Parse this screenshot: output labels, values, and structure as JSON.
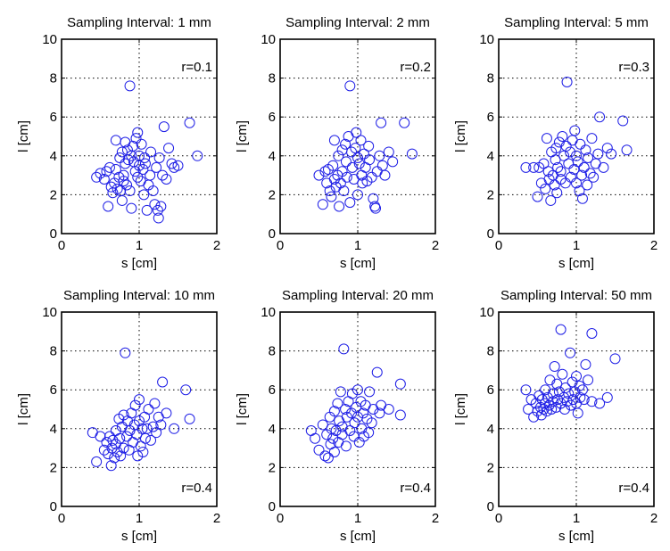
{
  "chart_data": [
    {
      "type": "scatter",
      "title": "Sampling Interval: 1 mm",
      "xlabel": "s [cm]",
      "ylabel": "l [cm]",
      "xlim": [
        0,
        2
      ],
      "ylim": [
        0,
        10
      ],
      "xticks": [
        "0",
        "1",
        "2"
      ],
      "yticks": [
        "0",
        "2",
        "4",
        "6",
        "8",
        "10"
      ],
      "grid": true,
      "marker_color": "#1f1fe6",
      "annotation": "r=0.1",
      "annotation_position": "top-right",
      "points": [
        [
          0.45,
          2.9
        ],
        [
          0.5,
          3.1
        ],
        [
          0.55,
          2.8
        ],
        [
          0.58,
          3.2
        ],
        [
          0.6,
          1.4
        ],
        [
          0.62,
          3.4
        ],
        [
          0.64,
          2.4
        ],
        [
          0.66,
          2.1
        ],
        [
          0.68,
          2.6
        ],
        [
          0.7,
          3.3
        ],
        [
          0.7,
          4.8
        ],
        [
          0.72,
          2.3
        ],
        [
          0.74,
          2.9
        ],
        [
          0.75,
          3.9
        ],
        [
          0.76,
          2.2
        ],
        [
          0.78,
          1.7
        ],
        [
          0.78,
          4.2
        ],
        [
          0.8,
          3.0
        ],
        [
          0.8,
          2.7
        ],
        [
          0.82,
          4.7
        ],
        [
          0.82,
          3.6
        ],
        [
          0.84,
          2.5
        ],
        [
          0.85,
          4.3
        ],
        [
          0.86,
          3.8
        ],
        [
          0.88,
          7.6
        ],
        [
          0.88,
          2.2
        ],
        [
          0.9,
          4.0
        ],
        [
          0.9,
          1.3
        ],
        [
          0.92,
          4.5
        ],
        [
          0.93,
          3.7
        ],
        [
          0.95,
          3.2
        ],
        [
          0.96,
          4.9
        ],
        [
          0.98,
          5.2
        ],
        [
          0.98,
          2.9
        ],
        [
          1.0,
          4.0
        ],
        [
          1.0,
          3.5
        ],
        [
          1.02,
          2.7
        ],
        [
          1.03,
          4.6
        ],
        [
          1.05,
          3.3
        ],
        [
          1.06,
          2.0
        ],
        [
          1.07,
          3.9
        ],
        [
          1.08,
          3.6
        ],
        [
          1.1,
          1.2
        ],
        [
          1.12,
          2.5
        ],
        [
          1.14,
          3.0
        ],
        [
          1.15,
          4.2
        ],
        [
          1.18,
          2.2
        ],
        [
          1.2,
          1.5
        ],
        [
          1.22,
          3.4
        ],
        [
          1.24,
          1.2
        ],
        [
          1.25,
          0.8
        ],
        [
          1.26,
          3.9
        ],
        [
          1.28,
          1.4
        ],
        [
          1.3,
          3.0
        ],
        [
          1.32,
          5.5
        ],
        [
          1.35,
          2.8
        ],
        [
          1.38,
          4.4
        ],
        [
          1.42,
          3.6
        ],
        [
          1.45,
          3.4
        ],
        [
          1.5,
          3.5
        ],
        [
          1.65,
          5.7
        ],
        [
          1.75,
          4.0
        ]
      ]
    },
    {
      "type": "scatter",
      "title": "Sampling Interval: 2 mm",
      "xlabel": "s [cm]",
      "ylabel": "l [cm]",
      "xlim": [
        0,
        2
      ],
      "ylim": [
        0,
        10
      ],
      "xticks": [
        "0",
        "1",
        "2"
      ],
      "yticks": [
        "0",
        "2",
        "4",
        "6",
        "8",
        "10"
      ],
      "grid": true,
      "marker_color": "#1f1fe6",
      "annotation": "r=0.2",
      "annotation_position": "top-right",
      "points": [
        [
          0.5,
          3.0
        ],
        [
          0.55,
          1.5
        ],
        [
          0.58,
          3.2
        ],
        [
          0.6,
          2.6
        ],
        [
          0.62,
          3.3
        ],
        [
          0.64,
          2.2
        ],
        [
          0.66,
          1.9
        ],
        [
          0.68,
          3.5
        ],
        [
          0.7,
          2.8
        ],
        [
          0.7,
          4.8
        ],
        [
          0.72,
          2.4
        ],
        [
          0.74,
          3.0
        ],
        [
          0.75,
          4.0
        ],
        [
          0.76,
          1.4
        ],
        [
          0.78,
          2.6
        ],
        [
          0.8,
          4.3
        ],
        [
          0.8,
          3.2
        ],
        [
          0.82,
          2.2
        ],
        [
          0.84,
          4.6
        ],
        [
          0.85,
          3.7
        ],
        [
          0.86,
          2.9
        ],
        [
          0.88,
          5.0
        ],
        [
          0.9,
          7.6
        ],
        [
          0.9,
          1.6
        ],
        [
          0.92,
          4.2
        ],
        [
          0.93,
          3.4
        ],
        [
          0.95,
          2.8
        ],
        [
          0.97,
          4.4
        ],
        [
          0.98,
          5.2
        ],
        [
          1.0,
          3.9
        ],
        [
          1.0,
          2.0
        ],
        [
          1.02,
          3.6
        ],
        [
          1.04,
          4.8
        ],
        [
          1.05,
          3.0
        ],
        [
          1.06,
          2.6
        ],
        [
          1.08,
          4.1
        ],
        [
          1.1,
          3.4
        ],
        [
          1.12,
          2.7
        ],
        [
          1.14,
          4.5
        ],
        [
          1.15,
          3.8
        ],
        [
          1.18,
          2.9
        ],
        [
          1.2,
          1.8
        ],
        [
          1.22,
          1.4
        ],
        [
          1.23,
          1.3
        ],
        [
          1.25,
          3.2
        ],
        [
          1.28,
          4.0
        ],
        [
          1.3,
          5.7
        ],
        [
          1.32,
          3.5
        ],
        [
          1.35,
          3.0
        ],
        [
          1.4,
          4.2
        ],
        [
          1.45,
          3.7
        ],
        [
          1.6,
          5.7
        ],
        [
          1.7,
          4.1
        ]
      ]
    },
    {
      "type": "scatter",
      "title": "Sampling Interval: 5 mm",
      "xlabel": "s [cm]",
      "ylabel": "l [cm]",
      "xlim": [
        0,
        2
      ],
      "ylim": [
        0,
        10
      ],
      "xticks": [
        "0",
        "1",
        "2"
      ],
      "yticks": [
        "0",
        "2",
        "4",
        "6",
        "8",
        "10"
      ],
      "grid": true,
      "marker_color": "#1f1fe6",
      "annotation": "r=0.3",
      "annotation_position": "top-right",
      "points": [
        [
          0.35,
          3.4
        ],
        [
          0.45,
          3.4
        ],
        [
          0.5,
          1.9
        ],
        [
          0.52,
          3.4
        ],
        [
          0.55,
          2.6
        ],
        [
          0.58,
          3.6
        ],
        [
          0.6,
          2.3
        ],
        [
          0.62,
          4.9
        ],
        [
          0.64,
          3.2
        ],
        [
          0.65,
          2.8
        ],
        [
          0.67,
          1.7
        ],
        [
          0.68,
          4.2
        ],
        [
          0.7,
          3.0
        ],
        [
          0.72,
          2.5
        ],
        [
          0.73,
          3.8
        ],
        [
          0.74,
          4.4
        ],
        [
          0.75,
          2.1
        ],
        [
          0.76,
          3.4
        ],
        [
          0.78,
          4.7
        ],
        [
          0.8,
          2.8
        ],
        [
          0.8,
          3.2
        ],
        [
          0.82,
          5.0
        ],
        [
          0.84,
          4.0
        ],
        [
          0.86,
          2.6
        ],
        [
          0.87,
          4.5
        ],
        [
          0.88,
          7.8
        ],
        [
          0.9,
          3.6
        ],
        [
          0.92,
          4.2
        ],
        [
          0.93,
          2.9
        ],
        [
          0.95,
          4.8
        ],
        [
          0.97,
          3.3
        ],
        [
          0.98,
          5.3
        ],
        [
          1.0,
          4.0
        ],
        [
          1.0,
          2.6
        ],
        [
          1.02,
          3.7
        ],
        [
          1.04,
          2.2
        ],
        [
          1.05,
          4.6
        ],
        [
          1.07,
          3.0
        ],
        [
          1.08,
          1.8
        ],
        [
          1.1,
          3.4
        ],
        [
          1.12,
          4.3
        ],
        [
          1.14,
          2.5
        ],
        [
          1.15,
          3.9
        ],
        [
          1.18,
          3.1
        ],
        [
          1.2,
          4.9
        ],
        [
          1.22,
          2.9
        ],
        [
          1.25,
          3.6
        ],
        [
          1.28,
          4.1
        ],
        [
          1.3,
          6.0
        ],
        [
          1.35,
          3.4
        ],
        [
          1.4,
          4.4
        ],
        [
          1.45,
          4.1
        ],
        [
          1.6,
          5.8
        ],
        [
          1.65,
          4.3
        ]
      ]
    },
    {
      "type": "scatter",
      "title": "Sampling Interval: 10 mm",
      "xlabel": "s [cm]",
      "ylabel": "l [cm]",
      "xlim": [
        0,
        2
      ],
      "ylim": [
        0,
        10
      ],
      "xticks": [
        "0",
        "1",
        "2"
      ],
      "yticks": [
        "0",
        "2",
        "4",
        "6",
        "8",
        "10"
      ],
      "grid": true,
      "marker_color": "#1f1fe6",
      "annotation": "r=0.4",
      "annotation_position": "bottom-right",
      "points": [
        [
          0.4,
          3.8
        ],
        [
          0.45,
          2.3
        ],
        [
          0.5,
          3.6
        ],
        [
          0.55,
          2.9
        ],
        [
          0.58,
          3.3
        ],
        [
          0.6,
          2.7
        ],
        [
          0.62,
          3.6
        ],
        [
          0.64,
          2.1
        ],
        [
          0.65,
          3.0
        ],
        [
          0.66,
          3.4
        ],
        [
          0.68,
          2.5
        ],
        [
          0.7,
          3.9
        ],
        [
          0.7,
          3.2
        ],
        [
          0.72,
          2.8
        ],
        [
          0.74,
          4.5
        ],
        [
          0.75,
          3.5
        ],
        [
          0.76,
          2.6
        ],
        [
          0.78,
          4.1
        ],
        [
          0.8,
          3.0
        ],
        [
          0.8,
          4.7
        ],
        [
          0.82,
          7.9
        ],
        [
          0.84,
          3.6
        ],
        [
          0.85,
          4.4
        ],
        [
          0.87,
          2.9
        ],
        [
          0.88,
          3.9
        ],
        [
          0.9,
          4.8
        ],
        [
          0.92,
          3.3
        ],
        [
          0.94,
          4.2
        ],
        [
          0.95,
          5.2
        ],
        [
          0.97,
          3.7
        ],
        [
          0.98,
          2.6
        ],
        [
          1.0,
          5.5
        ],
        [
          1.0,
          4.4
        ],
        [
          1.02,
          3.1
        ],
        [
          1.04,
          4.0
        ],
        [
          1.05,
          2.8
        ],
        [
          1.07,
          4.6
        ],
        [
          1.08,
          3.5
        ],
        [
          1.1,
          4.0
        ],
        [
          1.12,
          5.0
        ],
        [
          1.15,
          3.4
        ],
        [
          1.18,
          4.1
        ],
        [
          1.2,
          5.3
        ],
        [
          1.22,
          3.8
        ],
        [
          1.25,
          4.6
        ],
        [
          1.28,
          4.2
        ],
        [
          1.3,
          6.4
        ],
        [
          1.35,
          4.8
        ],
        [
          1.45,
          4.0
        ],
        [
          1.6,
          6.0
        ],
        [
          1.65,
          4.5
        ]
      ]
    },
    {
      "type": "scatter",
      "title": "Sampling Interval: 20 mm",
      "xlabel": "s [cm]",
      "ylabel": "l [cm]",
      "xlim": [
        0,
        2
      ],
      "ylim": [
        0,
        10
      ],
      "xticks": [
        "0",
        "1",
        "2"
      ],
      "yticks": [
        "0",
        "2",
        "4",
        "6",
        "8",
        "10"
      ],
      "grid": true,
      "marker_color": "#1f1fe6",
      "annotation": "r=0.4",
      "annotation_position": "bottom-right",
      "points": [
        [
          0.4,
          3.9
        ],
        [
          0.45,
          3.5
        ],
        [
          0.5,
          2.9
        ],
        [
          0.55,
          4.2
        ],
        [
          0.58,
          2.6
        ],
        [
          0.6,
          3.7
        ],
        [
          0.62,
          2.5
        ],
        [
          0.64,
          4.6
        ],
        [
          0.65,
          3.2
        ],
        [
          0.66,
          4.0
        ],
        [
          0.68,
          3.5
        ],
        [
          0.7,
          2.8
        ],
        [
          0.7,
          4.9
        ],
        [
          0.72,
          3.9
        ],
        [
          0.74,
          5.3
        ],
        [
          0.75,
          3.3
        ],
        [
          0.76,
          4.4
        ],
        [
          0.78,
          5.9
        ],
        [
          0.8,
          3.7
        ],
        [
          0.8,
          4.1
        ],
        [
          0.82,
          8.1
        ],
        [
          0.84,
          5.0
        ],
        [
          0.85,
          3.1
        ],
        [
          0.86,
          4.6
        ],
        [
          0.88,
          5.4
        ],
        [
          0.9,
          3.9
        ],
        [
          0.92,
          4.8
        ],
        [
          0.93,
          5.8
        ],
        [
          0.95,
          3.6
        ],
        [
          0.96,
          4.3
        ],
        [
          0.98,
          5.1
        ],
        [
          1.0,
          6.0
        ],
        [
          1.0,
          4.6
        ],
        [
          1.02,
          3.3
        ],
        [
          1.04,
          5.4
        ],
        [
          1.05,
          4.0
        ],
        [
          1.07,
          4.8
        ],
        [
          1.08,
          3.6
        ],
        [
          1.1,
          5.2
        ],
        [
          1.12,
          4.5
        ],
        [
          1.14,
          3.8
        ],
        [
          1.15,
          5.9
        ],
        [
          1.18,
          4.3
        ],
        [
          1.2,
          5.0
        ],
        [
          1.25,
          6.9
        ],
        [
          1.28,
          4.8
        ],
        [
          1.3,
          5.2
        ],
        [
          1.4,
          5.0
        ],
        [
          1.55,
          6.3
        ],
        [
          1.55,
          4.7
        ]
      ]
    },
    {
      "type": "scatter",
      "title": "Sampling Interval: 50 mm",
      "xlabel": "s [cm]",
      "ylabel": "l [cm]",
      "xlim": [
        0,
        2
      ],
      "ylim": [
        0,
        10
      ],
      "xticks": [
        "0",
        "1",
        "2"
      ],
      "yticks": [
        "0",
        "2",
        "4",
        "6",
        "8",
        "10"
      ],
      "grid": true,
      "marker_color": "#1f1fe6",
      "annotation": "r=0.4",
      "annotation_position": "bottom-right",
      "points": [
        [
          0.35,
          6.0
        ],
        [
          0.38,
          5.0
        ],
        [
          0.42,
          5.5
        ],
        [
          0.45,
          4.6
        ],
        [
          0.48,
          5.3
        ],
        [
          0.5,
          4.9
        ],
        [
          0.52,
          5.7
        ],
        [
          0.54,
          5.1
        ],
        [
          0.55,
          4.7
        ],
        [
          0.56,
          5.5
        ],
        [
          0.58,
          5.0
        ],
        [
          0.6,
          6.0
        ],
        [
          0.6,
          5.3
        ],
        [
          0.62,
          4.9
        ],
        [
          0.63,
          5.6
        ],
        [
          0.65,
          5.2
        ],
        [
          0.66,
          6.5
        ],
        [
          0.68,
          5.0
        ],
        [
          0.7,
          5.8
        ],
        [
          0.7,
          5.4
        ],
        [
          0.72,
          7.2
        ],
        [
          0.74,
          5.1
        ],
        [
          0.75,
          6.3
        ],
        [
          0.76,
          5.5
        ],
        [
          0.78,
          5.9
        ],
        [
          0.8,
          5.3
        ],
        [
          0.8,
          9.1
        ],
        [
          0.82,
          6.8
        ],
        [
          0.84,
          5.6
        ],
        [
          0.85,
          5.0
        ],
        [
          0.86,
          6.1
        ],
        [
          0.88,
          5.4
        ],
        [
          0.9,
          5.8
        ],
        [
          0.92,
          7.9
        ],
        [
          0.93,
          5.2
        ],
        [
          0.95,
          6.4
        ],
        [
          0.96,
          5.5
        ],
        [
          0.98,
          5.9
        ],
        [
          1.0,
          6.7
        ],
        [
          1.0,
          5.3
        ],
        [
          1.02,
          4.8
        ],
        [
          1.04,
          6.2
        ],
        [
          1.05,
          5.6
        ],
        [
          1.08,
          6.0
        ],
        [
          1.1,
          5.5
        ],
        [
          1.12,
          7.3
        ],
        [
          1.15,
          6.5
        ],
        [
          1.2,
          8.9
        ],
        [
          1.2,
          5.4
        ],
        [
          1.3,
          5.3
        ],
        [
          1.4,
          5.6
        ],
        [
          1.5,
          7.6
        ]
      ]
    }
  ]
}
